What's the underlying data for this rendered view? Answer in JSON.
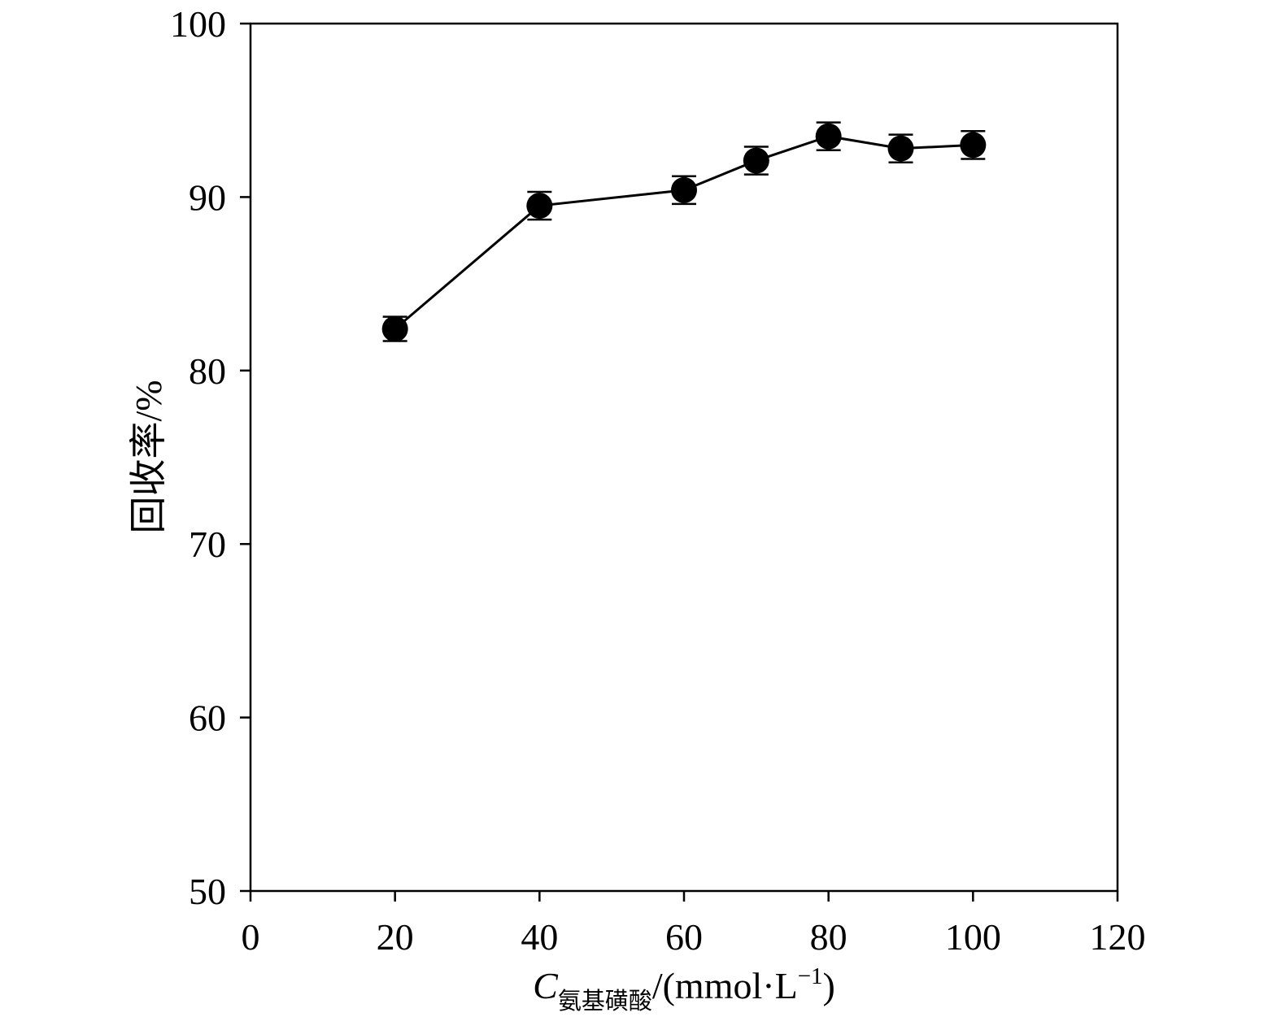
{
  "chart_data": {
    "type": "line",
    "title": "",
    "xlabel": {
      "symbol": "C",
      "subscript": "氨基磺酸",
      "unit_prefix": "/(mmol·L",
      "unit_exponent": "−1",
      "unit_suffix": ")"
    },
    "ylabel": "回收率/%",
    "xlim": [
      0,
      120
    ],
    "ylim": [
      50,
      100
    ],
    "x_ticks": [
      "0",
      "20",
      "40",
      "60",
      "80",
      "100",
      "120"
    ],
    "y_ticks": [
      "50",
      "60",
      "70",
      "80",
      "90",
      "100"
    ],
    "grid": false,
    "legend": "none",
    "marker": "filled-circle",
    "line_color": "#000000",
    "series": [
      {
        "x": [
          20,
          40,
          60,
          70,
          80,
          90,
          100
        ],
        "y": [
          82.4,
          89.5,
          90.4,
          92.1,
          93.5,
          92.8,
          93.0
        ],
        "error": [
          0.7,
          0.8,
          0.8,
          0.8,
          0.8,
          0.8,
          0.8
        ]
      }
    ]
  }
}
